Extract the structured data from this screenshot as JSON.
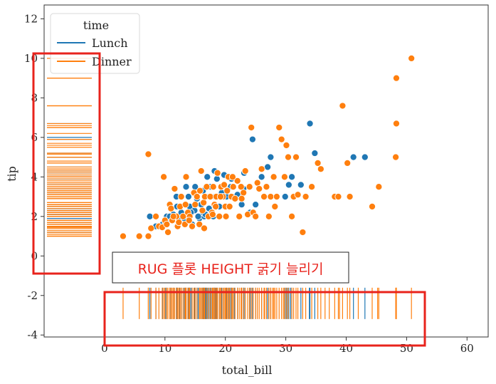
{
  "chart_data": {
    "type": "scatter",
    "title": "",
    "xlabel": "total_bill",
    "ylabel": "tip",
    "xlim": [
      -10,
      63.5
    ],
    "ylim": [
      -4.1,
      12.7
    ],
    "xticks": [
      0,
      10,
      20,
      30,
      40,
      50,
      60
    ],
    "yticks": [
      -4,
      -2,
      0,
      2,
      4,
      6,
      8,
      10,
      12
    ],
    "legend": {
      "title": "time",
      "location": "top-left"
    },
    "colors": {
      "Lunch": "#1f77b4",
      "Dinner": "#ff7f0e",
      "highlight": "#e8231c"
    },
    "series": [
      {
        "name": "Lunch",
        "points": [
          [
            7.5,
            2.0
          ],
          [
            8.5,
            1.5
          ],
          [
            9.6,
            1.6
          ],
          [
            10.1,
            1.7
          ],
          [
            10.3,
            2.0
          ],
          [
            11.0,
            1.8
          ],
          [
            11.4,
            2.1
          ],
          [
            12.0,
            1.5
          ],
          [
            12.4,
            1.8
          ],
          [
            12.7,
            2.2
          ],
          [
            13.2,
            1.9
          ],
          [
            13.5,
            3.5
          ],
          [
            13.8,
            2.0
          ],
          [
            14.1,
            2.5
          ],
          [
            14.5,
            1.6
          ],
          [
            14.9,
            2.3
          ],
          [
            15.3,
            2.9
          ],
          [
            15.7,
            1.9
          ],
          [
            16.0,
            2.6
          ],
          [
            16.3,
            3.3
          ],
          [
            16.5,
            2.0
          ],
          [
            16.8,
            3.0
          ],
          [
            17.0,
            4.0
          ],
          [
            17.3,
            2.4
          ],
          [
            17.6,
            3.5
          ],
          [
            18.0,
            2.0
          ],
          [
            18.3,
            3.0
          ],
          [
            18.6,
            3.9
          ],
          [
            19.0,
            2.5
          ],
          [
            19.4,
            3.2
          ],
          [
            19.8,
            4.1
          ],
          [
            20.2,
            3.0
          ],
          [
            20.6,
            2.5
          ],
          [
            21.0,
            3.9
          ],
          [
            21.5,
            3.0
          ],
          [
            22.0,
            3.1
          ],
          [
            22.7,
            2.6
          ],
          [
            23.0,
            3.4
          ],
          [
            23.1,
            4.2
          ],
          [
            24.5,
            5.9
          ],
          [
            25.0,
            2.6
          ],
          [
            26.0,
            4.0
          ],
          [
            27.0,
            4.5
          ],
          [
            27.5,
            5.0
          ],
          [
            29.9,
            3.0
          ],
          [
            30.5,
            3.6
          ],
          [
            31.0,
            4.0
          ],
          [
            34.0,
            6.7
          ],
          [
            34.8,
            5.2
          ],
          [
            41.2,
            5.0
          ],
          [
            43.1,
            5.0
          ],
          [
            32.5,
            3.6
          ],
          [
            15.0,
            3.5
          ],
          [
            13.9,
            3.0
          ],
          [
            12.0,
            2.5
          ],
          [
            18.2,
            4.3
          ],
          [
            16.3,
            2.2
          ],
          [
            20.9,
            3.5
          ],
          [
            24.1,
            2.2
          ],
          [
            16.7,
            2.1
          ],
          [
            11.9,
            3.0
          ],
          [
            10.8,
            2.0
          ],
          [
            14.3,
            2.2
          ],
          [
            15.5,
            2.0
          ]
        ],
        "rug_x_extra": [
          30.2,
          30.8,
          33.9
        ],
        "rug_y_extra": [
          1.2,
          6.0
        ]
      },
      {
        "name": "Dinner",
        "points": [
          [
            3.07,
            1.0
          ],
          [
            5.75,
            1.0
          ],
          [
            7.25,
            1.0
          ],
          [
            7.25,
            5.15
          ],
          [
            7.7,
            1.4
          ],
          [
            8.5,
            2.0
          ],
          [
            9.0,
            1.5
          ],
          [
            9.55,
            1.45
          ],
          [
            9.8,
            4.0
          ],
          [
            10.0,
            1.8
          ],
          [
            10.3,
            1.6
          ],
          [
            10.5,
            1.2
          ],
          [
            10.8,
            2.6
          ],
          [
            11.0,
            2.4
          ],
          [
            11.2,
            1.8
          ],
          [
            11.6,
            3.4
          ],
          [
            11.9,
            2.0
          ],
          [
            12.1,
            1.5
          ],
          [
            12.5,
            2.5
          ],
          [
            12.7,
            3.0
          ],
          [
            13.0,
            2.0
          ],
          [
            13.3,
            1.6
          ],
          [
            13.5,
            4.0
          ],
          [
            13.8,
            2.2
          ],
          [
            14.1,
            2.0
          ],
          [
            14.5,
            1.5
          ],
          [
            14.8,
            3.2
          ],
          [
            15.0,
            2.6
          ],
          [
            15.3,
            3.0
          ],
          [
            15.7,
            1.6
          ],
          [
            16.0,
            4.3
          ],
          [
            16.2,
            2.3
          ],
          [
            16.4,
            2.7
          ],
          [
            16.6,
            3.0
          ],
          [
            16.9,
            3.5
          ],
          [
            17.2,
            2.0
          ],
          [
            17.5,
            3.0
          ],
          [
            17.8,
            2.2
          ],
          [
            18.0,
            3.5
          ],
          [
            18.2,
            2.6
          ],
          [
            18.5,
            3.0
          ],
          [
            18.7,
            4.2
          ],
          [
            19.0,
            2.0
          ],
          [
            19.3,
            3.5
          ],
          [
            19.6,
            3.0
          ],
          [
            19.8,
            3.6
          ],
          [
            20.0,
            2.5
          ],
          [
            20.3,
            3.3
          ],
          [
            20.5,
            4.0
          ],
          [
            20.7,
            2.5
          ],
          [
            21.0,
            3.0
          ],
          [
            21.3,
            3.5
          ],
          [
            21.6,
            2.9
          ],
          [
            22.0,
            3.8
          ],
          [
            22.3,
            2.0
          ],
          [
            22.6,
            3.5
          ],
          [
            23.0,
            3.2
          ],
          [
            23.3,
            4.3
          ],
          [
            23.7,
            2.1
          ],
          [
            24.0,
            3.5
          ],
          [
            24.3,
            6.5
          ],
          [
            24.6,
            2.2
          ],
          [
            25.0,
            2.0
          ],
          [
            25.3,
            3.7
          ],
          [
            25.6,
            3.4
          ],
          [
            26.0,
            4.4
          ],
          [
            26.4,
            3.0
          ],
          [
            26.8,
            3.5
          ],
          [
            27.2,
            2.0
          ],
          [
            27.5,
            3.0
          ],
          [
            28.0,
            4.0
          ],
          [
            28.2,
            2.5
          ],
          [
            28.5,
            3.0
          ],
          [
            28.9,
            6.5
          ],
          [
            29.3,
            5.9
          ],
          [
            29.8,
            4.0
          ],
          [
            30.1,
            5.6
          ],
          [
            30.4,
            5.0
          ],
          [
            31.0,
            2.0
          ],
          [
            31.3,
            3.0
          ],
          [
            31.7,
            5.0
          ],
          [
            32.0,
            3.1
          ],
          [
            32.8,
            1.2
          ],
          [
            33.3,
            3.0
          ],
          [
            34.3,
            3.5
          ],
          [
            35.3,
            4.7
          ],
          [
            35.8,
            4.4
          ],
          [
            38.1,
            3.0
          ],
          [
            39.4,
            7.6
          ],
          [
            38.7,
            3.0
          ],
          [
            40.2,
            4.7
          ],
          [
            40.6,
            3.0
          ],
          [
            44.3,
            2.5
          ],
          [
            45.4,
            3.5
          ],
          [
            48.2,
            5.0
          ],
          [
            48.3,
            6.7
          ],
          [
            48.3,
            9.0
          ],
          [
            50.8,
            10.0
          ],
          [
            20.1,
            2.0
          ],
          [
            17.9,
            2.1
          ],
          [
            16.5,
            1.4
          ],
          [
            14.0,
            1.8
          ],
          [
            12.3,
            1.7
          ],
          [
            21.2,
            4.0
          ],
          [
            22.7,
            2.9
          ],
          [
            19.2,
            3.0
          ],
          [
            18.4,
            2.5
          ],
          [
            15.8,
            3.3
          ],
          [
            13.4,
            2.6
          ],
          [
            11.4,
            2.0
          ]
        ],
        "rug_x_extra": [
          26.5,
          27.8,
          29.6,
          36.5,
          37.2,
          38.9,
          42.0,
          45.2
        ],
        "rug_y_extra": [
          1.1,
          1.3,
          1.7,
          2.3,
          2.7,
          2.9,
          3.1,
          3.3,
          3.7,
          3.9,
          4.1,
          4.5,
          4.8,
          5.0,
          5.2,
          5.5,
          5.7,
          6.2,
          6.6,
          7.6,
          9.0
        ]
      }
    ],
    "rug_y_at": -2.4,
    "annotation": {
      "text": "RUG 플롯 HEIGHT 굵기 늘리기"
    }
  }
}
